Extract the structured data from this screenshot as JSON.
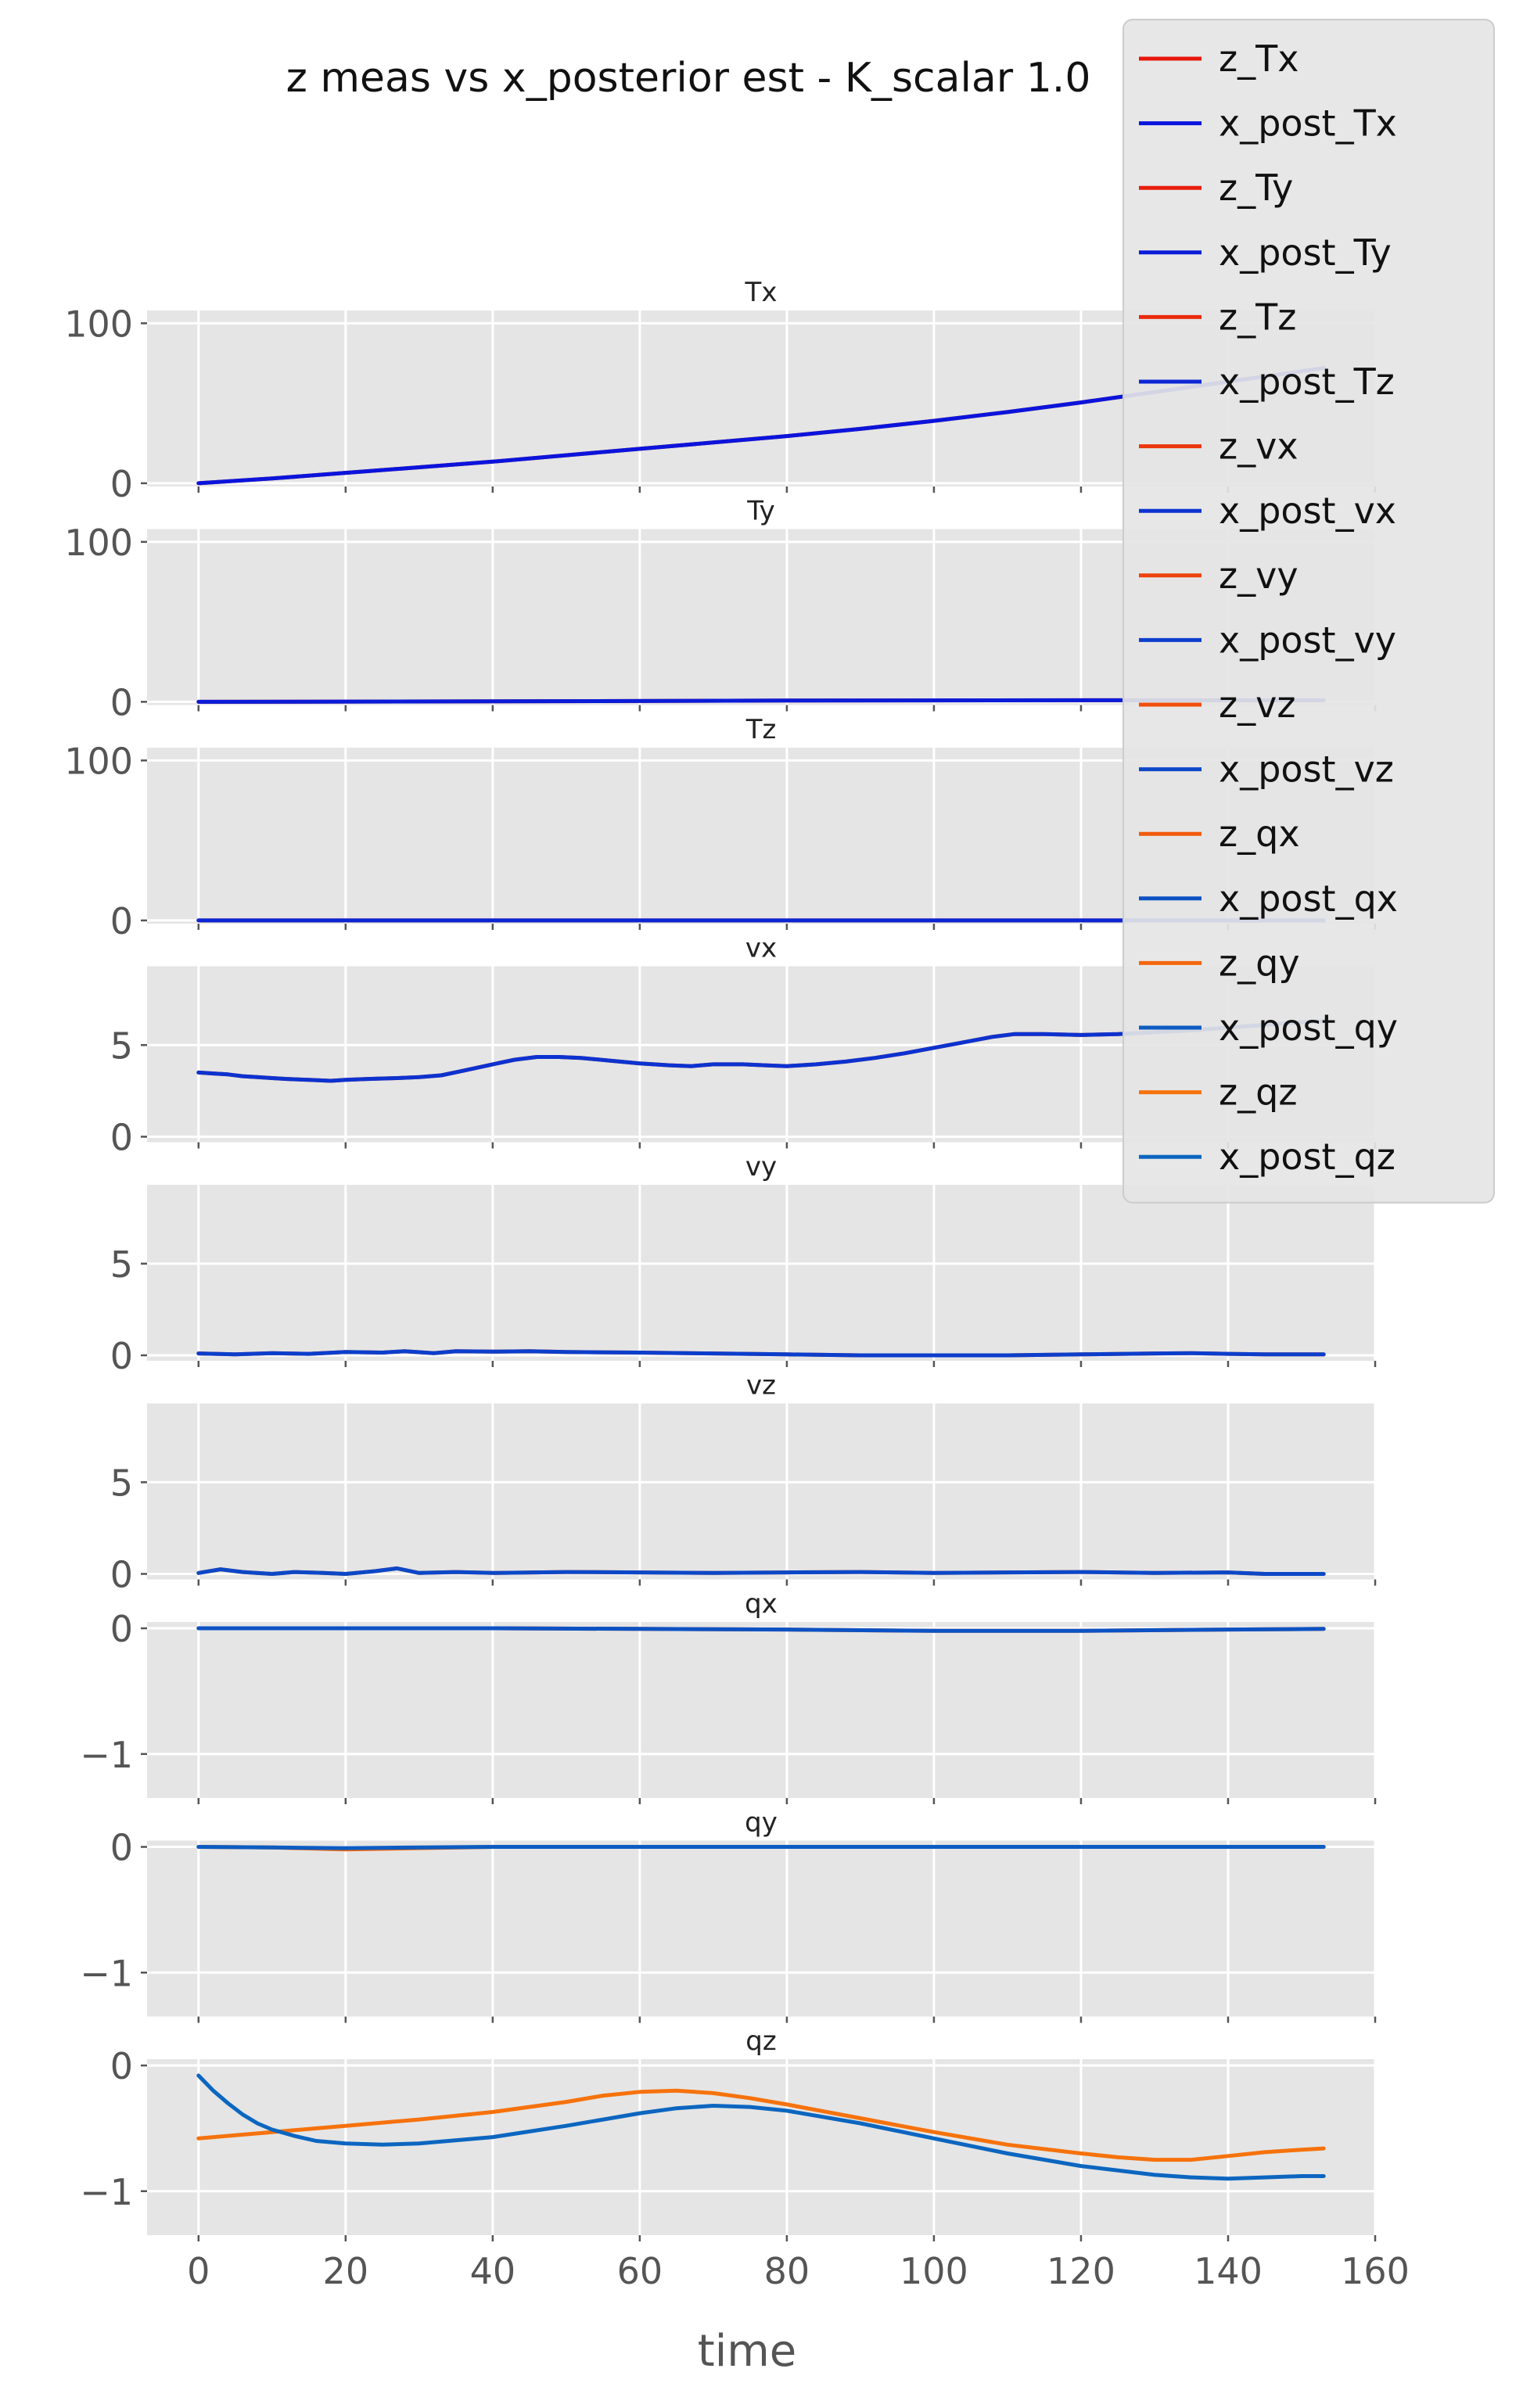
{
  "figure": {
    "title": "z meas vs x_posterior est - K_scalar 1.0",
    "xlabel": "time"
  },
  "colors": {
    "panel_bg": "#e5e5e5",
    "grid": "#ffffff",
    "tick_label": "#555555",
    "legend_bg": "#e5e5e5",
    "legend_border": "#cccccc"
  },
  "legend": {
    "placement": "top-right",
    "entries": [
      {
        "label": "z_Tx",
        "color": "#e8160c"
      },
      {
        "label": "x_post_Tx",
        "color": "#0a14dc"
      },
      {
        "label": "z_Ty",
        "color": "#e81d0c"
      },
      {
        "label": "x_post_Ty",
        "color": "#0a1cd8"
      },
      {
        "label": "z_Tz",
        "color": "#ea2a0c"
      },
      {
        "label": "x_post_Tz",
        "color": "#0b26d4"
      },
      {
        "label": "z_vx",
        "color": "#ec360c"
      },
      {
        "label": "x_post_vx",
        "color": "#0c32d0"
      },
      {
        "label": "z_vy",
        "color": "#ee420c"
      },
      {
        "label": "x_post_vy",
        "color": "#0c3ecc"
      },
      {
        "label": "z_vz",
        "color": "#f04e0c"
      },
      {
        "label": "x_post_vz",
        "color": "#0c48c8"
      },
      {
        "label": "z_qx",
        "color": "#f25a0c"
      },
      {
        "label": "x_post_qx",
        "color": "#0c52c4"
      },
      {
        "label": "z_qy",
        "color": "#f4660c"
      },
      {
        "label": "x_post_qy",
        "color": "#0c5cc2"
      },
      {
        "label": "z_qz",
        "color": "#f6720c"
      },
      {
        "label": "x_post_qz",
        "color": "#0c66c0"
      }
    ]
  },
  "chart_data": [
    {
      "type": "line",
      "title": "Tx",
      "xlim": [
        -7,
        160
      ],
      "ylim": [
        -2,
        108
      ],
      "yticks": [
        0,
        100
      ],
      "xticks": [
        0,
        20,
        40,
        60,
        80,
        100,
        120,
        140,
        160
      ],
      "grid": true,
      "series": [
        {
          "name": "z_Tx",
          "color": "#e8160c",
          "x": [
            0,
            10,
            20,
            30,
            40,
            50,
            60,
            70,
            80,
            90,
            100,
            110,
            120,
            130,
            140,
            150,
            153
          ],
          "y": [
            0,
            3,
            6.5,
            10,
            13.5,
            17.5,
            21.5,
            25.5,
            29.5,
            34,
            39,
            44.5,
            50.5,
            57,
            63.5,
            70,
            72
          ]
        },
        {
          "name": "x_post_Tx",
          "color": "#0a14dc",
          "x": [
            0,
            10,
            20,
            30,
            40,
            50,
            60,
            70,
            80,
            90,
            100,
            110,
            120,
            130,
            140,
            150,
            153
          ],
          "y": [
            0,
            3,
            6.5,
            10,
            13.5,
            17.5,
            21.5,
            25.5,
            29.5,
            34,
            39,
            44.5,
            50.5,
            57,
            63.5,
            70,
            72
          ]
        }
      ]
    },
    {
      "type": "line",
      "title": "Ty",
      "xlim": [
        -7,
        160
      ],
      "ylim": [
        -2,
        108
      ],
      "yticks": [
        0,
        100
      ],
      "xticks": [
        0,
        20,
        40,
        60,
        80,
        100,
        120,
        140,
        160
      ],
      "grid": true,
      "series": [
        {
          "name": "z_Ty",
          "color": "#e81d0c",
          "x": [
            0,
            40,
            80,
            120,
            153
          ],
          "y": [
            0,
            0.3,
            0.8,
            1.0,
            1.0
          ]
        },
        {
          "name": "x_post_Ty",
          "color": "#0a1cd8",
          "x": [
            0,
            40,
            80,
            120,
            153
          ],
          "y": [
            0,
            0.3,
            0.8,
            1.0,
            1.0
          ]
        }
      ]
    },
    {
      "type": "line",
      "title": "Tz",
      "xlim": [
        -7,
        160
      ],
      "ylim": [
        -2,
        108
      ],
      "yticks": [
        0,
        100
      ],
      "xticks": [
        0,
        20,
        40,
        60,
        80,
        100,
        120,
        140,
        160
      ],
      "grid": true,
      "series": [
        {
          "name": "z_Tz",
          "color": "#ea2a0c",
          "x": [
            0,
            153
          ],
          "y": [
            0,
            0
          ]
        },
        {
          "name": "x_post_Tz",
          "color": "#0b26d4",
          "x": [
            0,
            153
          ],
          "y": [
            0,
            0
          ]
        }
      ]
    },
    {
      "type": "line",
      "title": "vx",
      "xlim": [
        -7,
        160
      ],
      "ylim": [
        -0.3,
        9.3
      ],
      "yticks": [
        0,
        5
      ],
      "xticks": [
        0,
        20,
        40,
        60,
        80,
        100,
        120,
        140,
        160
      ],
      "grid": true,
      "series": [
        {
          "name": "z_vx",
          "color": "#ec360c",
          "x": [
            0,
            2,
            4,
            6,
            8,
            10,
            12,
            15,
            18,
            20,
            23,
            27,
            30,
            33,
            36,
            40,
            43,
            46,
            49,
            52,
            56,
            60,
            64,
            67,
            70,
            74,
            77,
            80,
            84,
            88,
            92,
            96,
            100,
            104,
            108,
            111,
            115,
            120,
            125,
            130,
            135,
            140,
            145,
            150,
            153
          ],
          "y": [
            3.5,
            3.45,
            3.4,
            3.3,
            3.25,
            3.2,
            3.15,
            3.1,
            3.05,
            3.1,
            3.15,
            3.2,
            3.25,
            3.35,
            3.6,
            3.95,
            4.2,
            4.35,
            4.35,
            4.3,
            4.15,
            4.0,
            3.9,
            3.85,
            3.95,
            3.95,
            3.9,
            3.85,
            3.95,
            4.1,
            4.3,
            4.55,
            4.85,
            5.15,
            5.45,
            5.6,
            5.6,
            5.55,
            5.6,
            5.7,
            5.8,
            5.95,
            6.1,
            6.25,
            6.3
          ]
        },
        {
          "name": "x_post_vx",
          "color": "#0c32d0",
          "x": [
            0,
            2,
            4,
            6,
            8,
            10,
            12,
            15,
            18,
            20,
            23,
            27,
            30,
            33,
            36,
            40,
            43,
            46,
            49,
            52,
            56,
            60,
            64,
            67,
            70,
            74,
            77,
            80,
            84,
            88,
            92,
            96,
            100,
            104,
            108,
            111,
            115,
            120,
            125,
            130,
            135,
            140,
            145,
            150,
            153
          ],
          "y": [
            3.5,
            3.45,
            3.4,
            3.3,
            3.25,
            3.2,
            3.15,
            3.1,
            3.05,
            3.1,
            3.15,
            3.2,
            3.25,
            3.35,
            3.6,
            3.95,
            4.2,
            4.35,
            4.35,
            4.3,
            4.15,
            4.0,
            3.9,
            3.85,
            3.95,
            3.95,
            3.9,
            3.85,
            3.95,
            4.1,
            4.3,
            4.55,
            4.85,
            5.15,
            5.45,
            5.6,
            5.6,
            5.55,
            5.6,
            5.7,
            5.8,
            5.95,
            6.1,
            6.25,
            6.3
          ]
        }
      ]
    },
    {
      "type": "line",
      "title": "vy",
      "xlim": [
        -7,
        160
      ],
      "ylim": [
        -0.3,
        9.3
      ],
      "yticks": [
        0,
        5
      ],
      "xticks": [
        0,
        20,
        40,
        60,
        80,
        100,
        120,
        140,
        160
      ],
      "grid": true,
      "series": [
        {
          "name": "z_vy",
          "color": "#ee420c",
          "x": [
            0,
            5,
            10,
            15,
            20,
            25,
            28,
            32,
            35,
            40,
            45,
            50,
            60,
            70,
            80,
            90,
            100,
            110,
            120,
            130,
            135,
            140,
            145,
            153
          ],
          "y": [
            0.1,
            0.05,
            0.12,
            0.08,
            0.18,
            0.15,
            0.22,
            0.12,
            0.22,
            0.2,
            0.22,
            0.18,
            0.15,
            0.1,
            0.05,
            0.0,
            0.0,
            0.0,
            0.05,
            0.1,
            0.12,
            0.08,
            0.05,
            0.05
          ]
        },
        {
          "name": "x_post_vy",
          "color": "#0c3ecc",
          "x": [
            0,
            5,
            10,
            15,
            20,
            25,
            28,
            32,
            35,
            40,
            45,
            50,
            60,
            70,
            80,
            90,
            100,
            110,
            120,
            130,
            135,
            140,
            145,
            153
          ],
          "y": [
            0.1,
            0.05,
            0.12,
            0.08,
            0.18,
            0.15,
            0.22,
            0.12,
            0.22,
            0.2,
            0.22,
            0.18,
            0.15,
            0.1,
            0.05,
            0.0,
            0.0,
            0.0,
            0.05,
            0.1,
            0.12,
            0.08,
            0.05,
            0.05
          ]
        }
      ]
    },
    {
      "type": "line",
      "title": "vz",
      "xlim": [
        -7,
        160
      ],
      "ylim": [
        -0.3,
        9.3
      ],
      "yticks": [
        0,
        5
      ],
      "xticks": [
        0,
        20,
        40,
        60,
        80,
        100,
        120,
        140,
        160
      ],
      "grid": true,
      "series": [
        {
          "name": "z_vz",
          "color": "#f04e0c",
          "x": [
            0,
            3,
            6,
            10,
            13,
            17,
            20,
            24,
            27,
            30,
            35,
            40,
            50,
            60,
            70,
            80,
            90,
            100,
            110,
            120,
            130,
            140,
            145,
            153
          ],
          "y": [
            0.05,
            0.25,
            0.1,
            0.0,
            0.1,
            0.05,
            0.0,
            0.15,
            0.3,
            0.05,
            0.1,
            0.05,
            0.1,
            0.08,
            0.05,
            0.08,
            0.1,
            0.05,
            0.08,
            0.1,
            0.05,
            0.08,
            0.0,
            0.0
          ]
        },
        {
          "name": "x_post_vz",
          "color": "#0c48c8",
          "x": [
            0,
            3,
            6,
            10,
            13,
            17,
            20,
            24,
            27,
            30,
            35,
            40,
            50,
            60,
            70,
            80,
            90,
            100,
            110,
            120,
            130,
            140,
            145,
            153
          ],
          "y": [
            0.05,
            0.25,
            0.1,
            0.0,
            0.1,
            0.05,
            0.0,
            0.15,
            0.3,
            0.05,
            0.1,
            0.05,
            0.1,
            0.08,
            0.05,
            0.08,
            0.1,
            0.05,
            0.08,
            0.1,
            0.05,
            0.08,
            0.0,
            0.0
          ]
        }
      ]
    },
    {
      "type": "line",
      "title": "qx",
      "xlim": [
        -7,
        160
      ],
      "ylim": [
        -1.35,
        0.05
      ],
      "yticks": [
        0,
        -1
      ],
      "ytick_labels": [
        "0",
        "−1"
      ],
      "xticks": [
        0,
        20,
        40,
        60,
        80,
        100,
        120,
        140,
        160
      ],
      "grid": true,
      "series": [
        {
          "name": "z_qx",
          "color": "#f25a0c",
          "x": [
            0,
            20,
            40,
            60,
            80,
            100,
            120,
            140,
            153
          ],
          "y": [
            0,
            0,
            0.0,
            -0.005,
            -0.01,
            -0.02,
            -0.02,
            -0.01,
            -0.005
          ]
        },
        {
          "name": "x_post_qx",
          "color": "#0c52c4",
          "x": [
            0,
            20,
            40,
            60,
            80,
            100,
            120,
            140,
            153
          ],
          "y": [
            0,
            0,
            0.0,
            -0.005,
            -0.01,
            -0.02,
            -0.02,
            -0.01,
            -0.005
          ]
        }
      ]
    },
    {
      "type": "line",
      "title": "qy",
      "xlim": [
        -7,
        160
      ],
      "ylim": [
        -1.35,
        0.05
      ],
      "yticks": [
        0,
        -1
      ],
      "ytick_labels": [
        "0",
        "−1"
      ],
      "xticks": [
        0,
        20,
        40,
        60,
        80,
        100,
        120,
        140,
        160
      ],
      "grid": true,
      "series": [
        {
          "name": "z_qy",
          "color": "#f4660c",
          "x": [
            0,
            10,
            20,
            30,
            40,
            80,
            120,
            153
          ],
          "y": [
            0,
            -0.005,
            -0.02,
            -0.01,
            0,
            0,
            0,
            0
          ]
        },
        {
          "name": "x_post_qy",
          "color": "#0c5cc2",
          "x": [
            0,
            10,
            20,
            30,
            40,
            80,
            120,
            153
          ],
          "y": [
            0,
            -0.005,
            -0.01,
            -0.005,
            0,
            0,
            0,
            0
          ]
        }
      ]
    },
    {
      "type": "line",
      "title": "qz",
      "xlim": [
        -7,
        160
      ],
      "ylim": [
        -1.35,
        0.05
      ],
      "yticks": [
        0,
        -1
      ],
      "ytick_labels": [
        "0",
        "−1"
      ],
      "xticks": [
        0,
        20,
        40,
        60,
        80,
        100,
        120,
        140,
        160
      ],
      "xtick_labels": [
        "0",
        "20",
        "40",
        "60",
        "80",
        "100",
        "120",
        "140",
        "160"
      ],
      "grid": true,
      "series": [
        {
          "name": "z_qz",
          "color": "#f6720c",
          "x": [
            0,
            10,
            20,
            30,
            40,
            50,
            55,
            60,
            65,
            70,
            75,
            80,
            90,
            100,
            110,
            120,
            125,
            130,
            135,
            140,
            145,
            150,
            153
          ],
          "y": [
            -0.58,
            -0.53,
            -0.48,
            -0.43,
            -0.37,
            -0.29,
            -0.24,
            -0.21,
            -0.2,
            -0.22,
            -0.26,
            -0.31,
            -0.42,
            -0.53,
            -0.63,
            -0.7,
            -0.73,
            -0.75,
            -0.75,
            -0.72,
            -0.69,
            -0.67,
            -0.66
          ]
        },
        {
          "name": "x_post_qz",
          "color": "#0c66c0",
          "x": [
            0,
            2,
            4,
            6,
            8,
            10,
            13,
            16,
            20,
            25,
            30,
            40,
            50,
            60,
            65,
            70,
            75,
            80,
            90,
            100,
            110,
            120,
            130,
            135,
            140,
            145,
            150,
            153
          ],
          "y": [
            -0.08,
            -0.2,
            -0.3,
            -0.39,
            -0.46,
            -0.51,
            -0.56,
            -0.6,
            -0.62,
            -0.63,
            -0.62,
            -0.57,
            -0.48,
            -0.38,
            -0.34,
            -0.32,
            -0.33,
            -0.36,
            -0.46,
            -0.58,
            -0.7,
            -0.8,
            -0.87,
            -0.89,
            -0.9,
            -0.89,
            -0.88,
            -0.88
          ]
        }
      ]
    }
  ]
}
